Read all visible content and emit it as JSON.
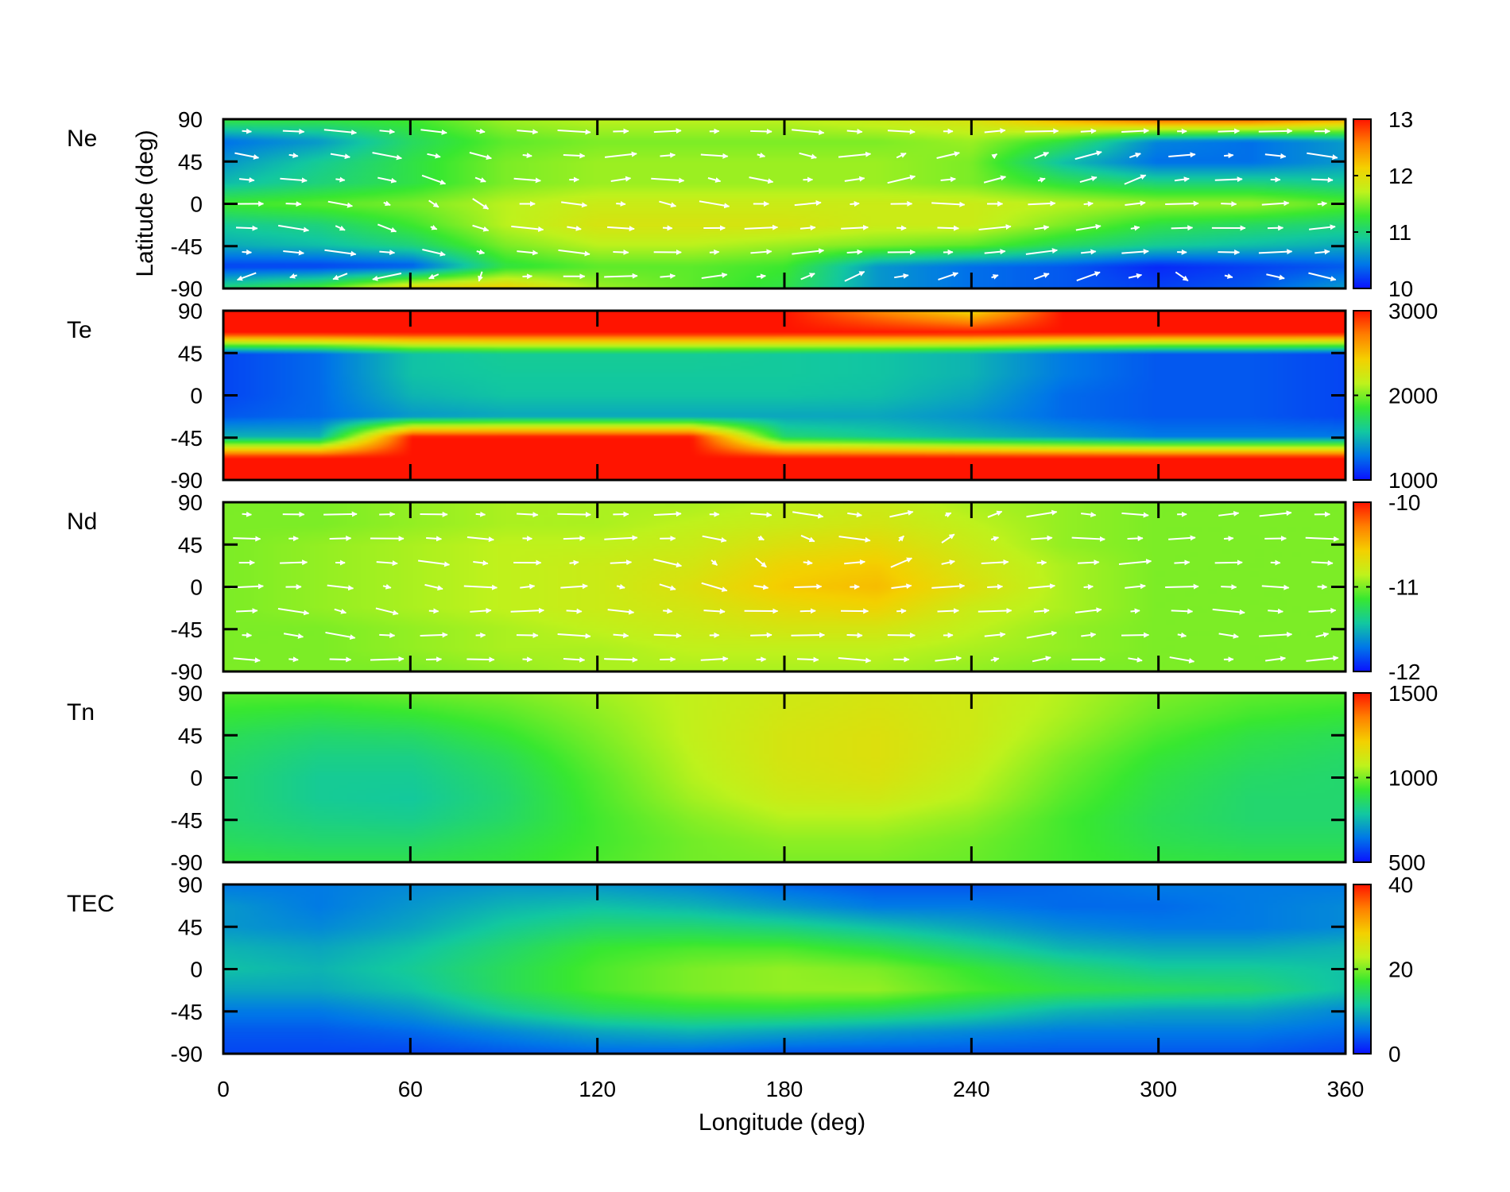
{
  "chart_data": {
    "type": "heatmap",
    "xlabel": "Longitude (deg)",
    "ylabel": "Latitude (deg)",
    "xlim": [
      0,
      360
    ],
    "ylim": [
      -90,
      90
    ],
    "x_ticks": [
      "0",
      "60",
      "120",
      "180",
      "240",
      "300",
      "360"
    ],
    "y_ticks": [
      "90",
      "45",
      "0",
      "-45",
      "-90"
    ],
    "grid": false,
    "colormap": [
      "#0a10ff",
      "#0077e8",
      "#12c8a0",
      "#38e830",
      "#bff21c",
      "#f4d000",
      "#ff8000",
      "#ff1400"
    ],
    "panels": [
      {
        "name": "Ne",
        "cbar_ticks": [
          "13",
          "12",
          "11",
          "10"
        ],
        "cbar_range": [
          10,
          13
        ],
        "vectors": true,
        "lon": [
          0,
          30,
          60,
          90,
          120,
          150,
          180,
          210,
          240,
          270,
          300,
          330,
          360
        ],
        "lat": [
          90,
          67.5,
          45,
          22.5,
          0,
          -22.5,
          -45,
          -67.5,
          -90
        ],
        "values": [
          [
            11.2,
            11.2,
            11.3,
            11.6,
            11.7,
            11.7,
            11.7,
            11.8,
            11.9,
            12.3,
            12.6,
            12.6,
            12.3
          ],
          [
            10.4,
            10.6,
            11.1,
            11.4,
            11.5,
            11.5,
            11.5,
            11.5,
            11.6,
            11.2,
            10.5,
            10.4,
            10.6
          ],
          [
            10.6,
            10.9,
            11.2,
            11.5,
            11.6,
            11.6,
            11.6,
            11.6,
            11.5,
            10.8,
            10.4,
            10.4,
            10.6
          ],
          [
            10.8,
            11.0,
            11.2,
            11.5,
            11.6,
            11.6,
            11.6,
            11.6,
            11.5,
            11.2,
            11.0,
            11.0,
            10.9
          ],
          [
            11.3,
            11.4,
            11.5,
            11.7,
            11.8,
            11.8,
            11.8,
            11.8,
            11.8,
            11.7,
            11.6,
            11.6,
            11.4
          ],
          [
            10.9,
            11.0,
            11.3,
            11.7,
            11.9,
            11.9,
            11.9,
            11.8,
            11.8,
            11.5,
            11.2,
            11.1,
            11.0
          ],
          [
            10.7,
            10.8,
            11.0,
            11.5,
            11.7,
            11.7,
            11.6,
            11.5,
            11.4,
            11.1,
            10.9,
            10.8,
            10.7
          ],
          [
            10.2,
            10.2,
            10.3,
            11.2,
            11.4,
            11.4,
            11.3,
            10.6,
            10.4,
            10.3,
            10.1,
            10.2,
            10.3
          ],
          [
            11.0,
            11.3,
            12.0,
            12.1,
            11.6,
            11.4,
            11.2,
            10.6,
            10.4,
            10.3,
            10.2,
            10.3,
            10.6
          ]
        ]
      },
      {
        "name": "Te",
        "cbar_ticks": [
          "3000",
          "2000",
          "1000"
        ],
        "cbar_range": [
          1000,
          3000
        ],
        "vectors": false,
        "lon": [
          0,
          30,
          60,
          90,
          120,
          150,
          180,
          210,
          240,
          270,
          300,
          330,
          360
        ],
        "lat": [
          90,
          67.5,
          45,
          22.5,
          0,
          -22.5,
          -45,
          -67.5,
          -90
        ],
        "values": [
          [
            3000,
            3000,
            3000,
            3000,
            3000,
            3000,
            3000,
            2700,
            2400,
            3000,
            3000,
            3000,
            3000
          ],
          [
            3000,
            3000,
            3000,
            3000,
            3000,
            3000,
            3000,
            3000,
            3000,
            3000,
            3000,
            3000,
            3000
          ],
          [
            1150,
            1250,
            1550,
            1600,
            1600,
            1600,
            1580,
            1560,
            1500,
            1300,
            1200,
            1200,
            1150
          ],
          [
            1150,
            1250,
            1550,
            1580,
            1580,
            1580,
            1580,
            1560,
            1500,
            1300,
            1200,
            1200,
            1150
          ],
          [
            1150,
            1250,
            1500,
            1560,
            1560,
            1560,
            1560,
            1540,
            1450,
            1250,
            1200,
            1200,
            1150
          ],
          [
            1200,
            1250,
            1400,
            1450,
            1450,
            1450,
            1450,
            1450,
            1380,
            1250,
            1200,
            1200,
            1150
          ],
          [
            1500,
            1500,
            3000,
            3000,
            3000,
            3000,
            1700,
            1600,
            1500,
            1400,
            1300,
            1300,
            1300
          ],
          [
            3000,
            3000,
            3000,
            3000,
            3000,
            3000,
            3000,
            3000,
            3000,
            3000,
            3000,
            3000,
            3000
          ],
          [
            3000,
            3000,
            3000,
            3000,
            3000,
            3000,
            3000,
            3000,
            3000,
            3000,
            3000,
            3000,
            3000
          ]
        ]
      },
      {
        "name": "Nd",
        "cbar_ticks": [
          "-10",
          "-11",
          "-12"
        ],
        "cbar_range": [
          -12,
          -10
        ],
        "vectors": true,
        "lon": [
          0,
          30,
          60,
          90,
          120,
          150,
          180,
          210,
          240,
          270,
          300,
          330,
          360
        ],
        "lat": [
          90,
          67.5,
          45,
          22.5,
          0,
          -22.5,
          -45,
          -67.5,
          -90
        ],
        "values": [
          [
            -11.0,
            -11.0,
            -10.95,
            -10.9,
            -10.9,
            -10.9,
            -10.85,
            -10.8,
            -10.9,
            -10.95,
            -11.0,
            -11.0,
            -11.0
          ],
          [
            -11.0,
            -11.0,
            -10.95,
            -10.9,
            -10.9,
            -10.85,
            -10.8,
            -10.75,
            -10.85,
            -10.95,
            -11.0,
            -11.0,
            -11.0
          ],
          [
            -11.0,
            -10.95,
            -10.9,
            -10.85,
            -10.85,
            -10.8,
            -10.7,
            -10.65,
            -10.8,
            -10.95,
            -11.0,
            -11.0,
            -11.0
          ],
          [
            -11.0,
            -10.95,
            -10.9,
            -10.85,
            -10.8,
            -10.75,
            -10.6,
            -10.55,
            -10.75,
            -10.9,
            -11.0,
            -11.0,
            -11.0
          ],
          [
            -11.0,
            -10.95,
            -10.9,
            -10.85,
            -10.8,
            -10.7,
            -10.55,
            -10.5,
            -10.7,
            -10.9,
            -11.0,
            -11.0,
            -11.0
          ],
          [
            -11.0,
            -10.95,
            -10.9,
            -10.85,
            -10.8,
            -10.75,
            -10.65,
            -10.6,
            -10.8,
            -10.9,
            -11.0,
            -11.0,
            -11.0
          ],
          [
            -11.0,
            -11.0,
            -10.95,
            -10.9,
            -10.85,
            -10.8,
            -10.75,
            -10.75,
            -10.85,
            -10.95,
            -11.0,
            -11.0,
            -11.0
          ],
          [
            -11.0,
            -11.0,
            -10.95,
            -10.9,
            -10.9,
            -10.85,
            -10.85,
            -10.85,
            -10.9,
            -10.95,
            -11.0,
            -11.0,
            -11.0
          ],
          [
            -11.0,
            -11.0,
            -11.0,
            -10.95,
            -10.9,
            -10.9,
            -10.9,
            -10.9,
            -10.95,
            -11.0,
            -11.0,
            -11.0,
            -11.0
          ]
        ]
      },
      {
        "name": "Tn",
        "cbar_ticks": [
          "1500",
          "1000",
          "500"
        ],
        "cbar_range": [
          500,
          1500
        ],
        "vectors": false,
        "lon": [
          0,
          30,
          60,
          90,
          120,
          150,
          180,
          210,
          240,
          270,
          300,
          330,
          360
        ],
        "lat": [
          90,
          67.5,
          45,
          22.5,
          0,
          -22.5,
          -45,
          -67.5,
          -90
        ],
        "values": [
          [
            960,
            960,
            980,
            1000,
            1040,
            1080,
            1110,
            1130,
            1110,
            1060,
            1000,
            970,
            960
          ],
          [
            920,
            900,
            920,
            960,
            1020,
            1080,
            1120,
            1140,
            1110,
            1050,
            980,
            940,
            920
          ],
          [
            880,
            850,
            860,
            920,
            1000,
            1080,
            1130,
            1150,
            1110,
            1030,
            950,
            900,
            880
          ],
          [
            860,
            820,
            820,
            880,
            980,
            1070,
            1130,
            1150,
            1100,
            1000,
            920,
            880,
            860
          ],
          [
            850,
            800,
            800,
            860,
            960,
            1060,
            1120,
            1140,
            1080,
            980,
            900,
            860,
            850
          ],
          [
            850,
            800,
            790,
            850,
            950,
            1040,
            1100,
            1110,
            1060,
            960,
            890,
            850,
            850
          ],
          [
            850,
            820,
            810,
            860,
            940,
            1010,
            1060,
            1060,
            1020,
            940,
            880,
            850,
            850
          ],
          [
            870,
            850,
            850,
            890,
            940,
            990,
            1020,
            1020,
            990,
            940,
            890,
            870,
            870
          ],
          [
            900,
            890,
            890,
            910,
            950,
            990,
            1000,
            1000,
            980,
            940,
            910,
            900,
            900
          ]
        ]
      },
      {
        "name": "TEC",
        "cbar_ticks": [
          "40",
          "20",
          "0"
        ],
        "cbar_range": [
          0,
          40
        ],
        "vectors": false,
        "lon": [
          0,
          30,
          60,
          90,
          120,
          150,
          180,
          210,
          240,
          270,
          300,
          330,
          360
        ],
        "lat": [
          90,
          67.5,
          45,
          22.5,
          0,
          -22.5,
          -45,
          -67.5,
          -90
        ],
        "values": [
          [
            6,
            6,
            7,
            8,
            8,
            7,
            5,
            4,
            4,
            5,
            6,
            6,
            6
          ],
          [
            8,
            6,
            8,
            10,
            11,
            10,
            8,
            6,
            6,
            5,
            5,
            6,
            7
          ],
          [
            8,
            7,
            9,
            12,
            14,
            14,
            13,
            11,
            9,
            7,
            6,
            6,
            7
          ],
          [
            10,
            9,
            11,
            14,
            17,
            18,
            18,
            16,
            13,
            10,
            9,
            9,
            10
          ],
          [
            11,
            10,
            12,
            15,
            18,
            20,
            21,
            20,
            17,
            14,
            12,
            12,
            11
          ],
          [
            9,
            9,
            11,
            15,
            18,
            20,
            21,
            21,
            18,
            16,
            15,
            14,
            11
          ],
          [
            6,
            6,
            8,
            12,
            15,
            16,
            16,
            15,
            13,
            10,
            9,
            9,
            7
          ],
          [
            4,
            4,
            5,
            7,
            9,
            10,
            9,
            8,
            7,
            6,
            6,
            6,
            5
          ],
          [
            3,
            3,
            3,
            4,
            5,
            5,
            4,
            4,
            4,
            4,
            4,
            4,
            3
          ]
        ]
      }
    ]
  }
}
